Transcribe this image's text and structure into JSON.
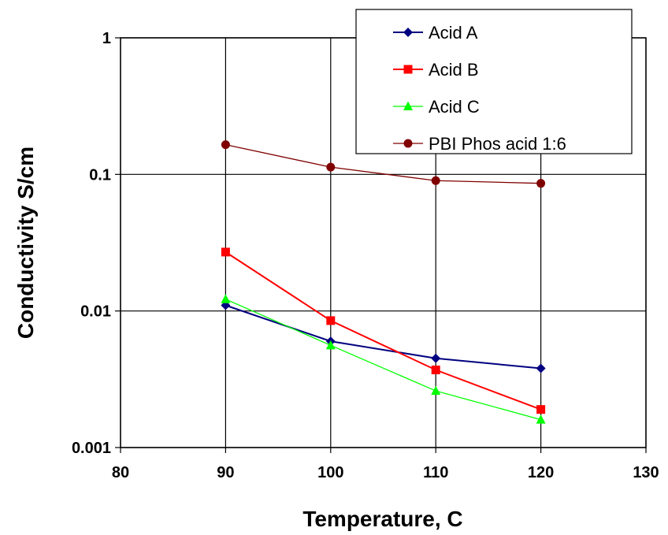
{
  "chart_data": {
    "type": "line",
    "xlabel": "Temperature, C",
    "ylabel": "Conductivity S/cm",
    "xlim": [
      80,
      130
    ],
    "ylim": [
      0.001,
      1
    ],
    "y_scale": "log",
    "x_ticks": [
      "80",
      "90",
      "100",
      "110",
      "120",
      "130"
    ],
    "y_ticks": [
      "0.001",
      "0.01",
      "0.1",
      "1"
    ],
    "grid": true,
    "legend_position": "top-right",
    "x": [
      90,
      100,
      110,
      120
    ],
    "series": [
      {
        "name": "Acid A",
        "color": "#000080",
        "marker": "diamond",
        "values": [
          0.011,
          0.006,
          0.0045,
          0.0038
        ]
      },
      {
        "name": "Acid B",
        "color": "#ff0000",
        "marker": "square",
        "values": [
          0.027,
          0.0085,
          0.0037,
          0.0019
        ]
      },
      {
        "name": "Acid C",
        "color": "#00ff00",
        "marker": "triangle",
        "values": [
          0.0122,
          0.0056,
          0.0026,
          0.0016
        ]
      },
      {
        "name": "PBI Phos acid 1:6",
        "color": "#800000",
        "marker": "circle",
        "values": [
          0.165,
          0.113,
          0.09,
          0.086
        ]
      }
    ]
  }
}
